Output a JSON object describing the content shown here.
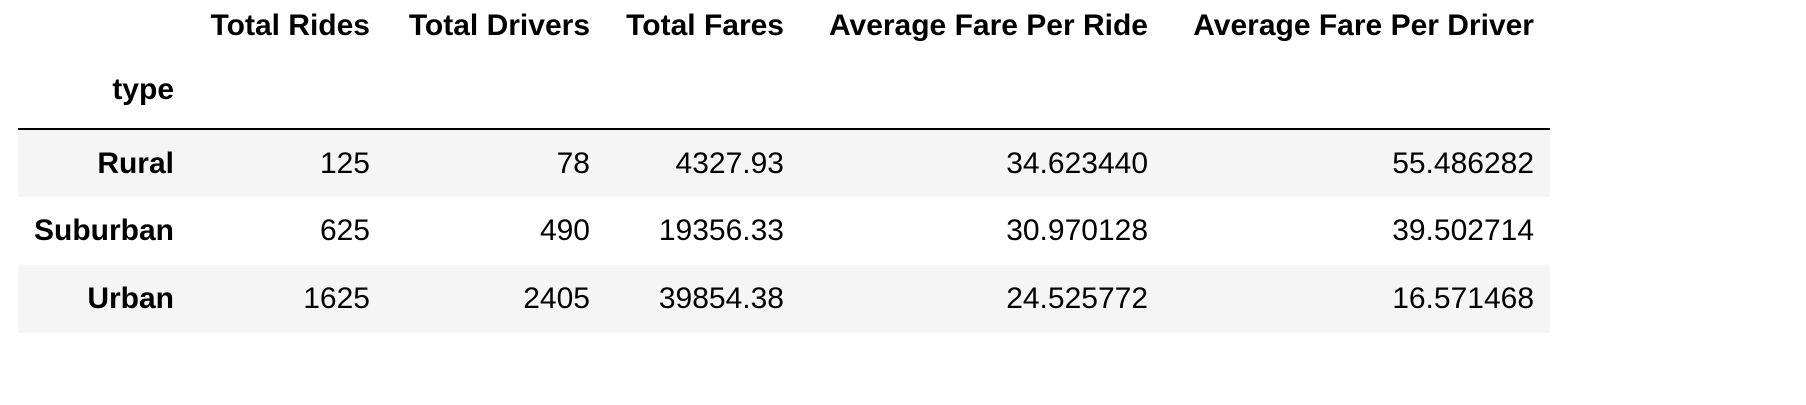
{
  "table": {
    "index_name": "type",
    "columns": [
      "Total Rides",
      "Total Drivers",
      "Total Fares",
      "Average Fare Per Ride",
      "Average Fare Per Driver"
    ],
    "rows": [
      {
        "index": "Rural",
        "values": [
          "125",
          "78",
          "4327.93",
          "34.623440",
          "55.486282"
        ]
      },
      {
        "index": "Suburban",
        "values": [
          "625",
          "490",
          "19356.33",
          "30.970128",
          "39.502714"
        ]
      },
      {
        "index": "Urban",
        "values": [
          "1625",
          "2405",
          "39854.38",
          "24.525772",
          "16.571468"
        ]
      }
    ]
  }
}
